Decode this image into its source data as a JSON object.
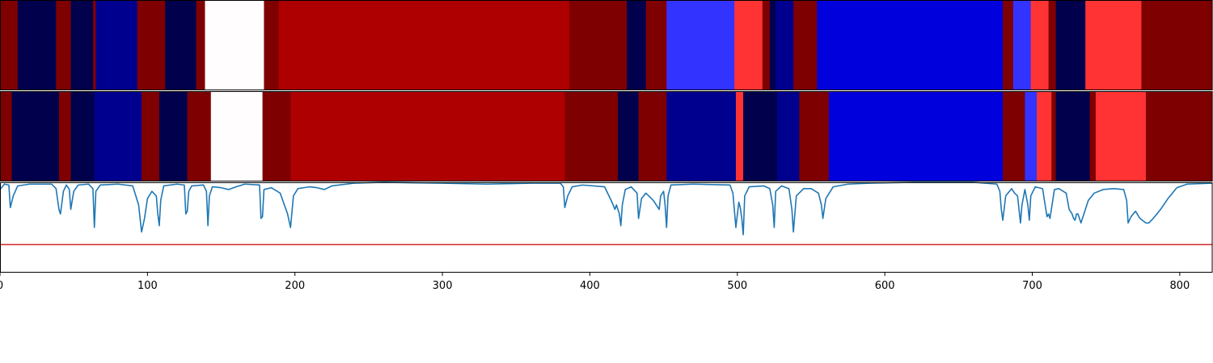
{
  "chart_data": {
    "type": "heatmap",
    "title": "",
    "xlabel": "",
    "ylabel": "",
    "xlim": [
      0,
      822
    ],
    "x_ticks": [
      "0",
      "100",
      "200",
      "300",
      "400",
      "500",
      "600",
      "700",
      "800"
    ],
    "x_tick_values": [
      0,
      100,
      200,
      300,
      400,
      500,
      600,
      700,
      800
    ],
    "grid": false,
    "tracks": [
      {
        "kind": "segments",
        "segments": [
          {
            "start": 0,
            "end": 12,
            "color": "#7f0000"
          },
          {
            "start": 12,
            "end": 38,
            "color": "#00004c"
          },
          {
            "start": 38,
            "end": 48,
            "color": "#7f0000"
          },
          {
            "start": 48,
            "end": 63,
            "color": "#00004c"
          },
          {
            "start": 63,
            "end": 65,
            "color": "#7f0000"
          },
          {
            "start": 65,
            "end": 93,
            "color": "#00008f"
          },
          {
            "start": 93,
            "end": 112,
            "color": "#7f0000"
          },
          {
            "start": 112,
            "end": 133,
            "color": "#00004c"
          },
          {
            "start": 133,
            "end": 139,
            "color": "#7f0000"
          },
          {
            "start": 139,
            "end": 179,
            "color": "#fffdfd"
          },
          {
            "start": 179,
            "end": 189,
            "color": "#7f0000"
          },
          {
            "start": 189,
            "end": 386,
            "color": "#ae0000"
          },
          {
            "start": 386,
            "end": 425,
            "color": "#7f0000"
          },
          {
            "start": 425,
            "end": 438,
            "color": "#00004c"
          },
          {
            "start": 438,
            "end": 452,
            "color": "#7f0000"
          },
          {
            "start": 452,
            "end": 498,
            "color": "#3333ff"
          },
          {
            "start": 498,
            "end": 517,
            "color": "#ff3333"
          },
          {
            "start": 517,
            "end": 522,
            "color": "#7f0000"
          },
          {
            "start": 522,
            "end": 526,
            "color": "#00004c"
          },
          {
            "start": 526,
            "end": 538,
            "color": "#00008f"
          },
          {
            "start": 538,
            "end": 554,
            "color": "#7f0000"
          },
          {
            "start": 554,
            "end": 680,
            "color": "#0000dd"
          },
          {
            "start": 680,
            "end": 687,
            "color": "#7f0000"
          },
          {
            "start": 687,
            "end": 699,
            "color": "#3333ff"
          },
          {
            "start": 699,
            "end": 711,
            "color": "#ff3333"
          },
          {
            "start": 711,
            "end": 716,
            "color": "#7f0000"
          },
          {
            "start": 716,
            "end": 736,
            "color": "#00004c"
          },
          {
            "start": 736,
            "end": 774,
            "color": "#ff3333"
          },
          {
            "start": 774,
            "end": 822,
            "color": "#7f0000"
          }
        ]
      },
      {
        "kind": "segments",
        "segments": [
          {
            "start": 0,
            "end": 8,
            "color": "#7f0000"
          },
          {
            "start": 8,
            "end": 40,
            "color": "#00004c"
          },
          {
            "start": 40,
            "end": 48,
            "color": "#7f0000"
          },
          {
            "start": 48,
            "end": 64,
            "color": "#00004c"
          },
          {
            "start": 64,
            "end": 96,
            "color": "#00008f"
          },
          {
            "start": 96,
            "end": 108,
            "color": "#7f0000"
          },
          {
            "start": 108,
            "end": 127,
            "color": "#00004c"
          },
          {
            "start": 127,
            "end": 143,
            "color": "#7f0000"
          },
          {
            "start": 143,
            "end": 178,
            "color": "#fffdfd"
          },
          {
            "start": 178,
            "end": 197,
            "color": "#7f0000"
          },
          {
            "start": 197,
            "end": 383,
            "color": "#ae0000"
          },
          {
            "start": 383,
            "end": 419,
            "color": "#7f0000"
          },
          {
            "start": 419,
            "end": 433,
            "color": "#00004c"
          },
          {
            "start": 433,
            "end": 452,
            "color": "#7f0000"
          },
          {
            "start": 452,
            "end": 499,
            "color": "#00008f"
          },
          {
            "start": 499,
            "end": 504,
            "color": "#ff3333"
          },
          {
            "start": 504,
            "end": 527,
            "color": "#00004c"
          },
          {
            "start": 527,
            "end": 542,
            "color": "#00008f"
          },
          {
            "start": 542,
            "end": 562,
            "color": "#7f0000"
          },
          {
            "start": 562,
            "end": 680,
            "color": "#0000dd"
          },
          {
            "start": 680,
            "end": 695,
            "color": "#7f0000"
          },
          {
            "start": 695,
            "end": 703,
            "color": "#3333ff"
          },
          {
            "start": 703,
            "end": 713,
            "color": "#ff3333"
          },
          {
            "start": 713,
            "end": 716,
            "color": "#7f0000"
          },
          {
            "start": 716,
            "end": 739,
            "color": "#00004c"
          },
          {
            "start": 739,
            "end": 743,
            "color": "#7f0000"
          },
          {
            "start": 743,
            "end": 777,
            "color": "#ff3333"
          },
          {
            "start": 777,
            "end": 822,
            "color": "#7f0000"
          }
        ]
      },
      {
        "kind": "line",
        "line_color": "#1f77b4",
        "threshold_color": "#d62728",
        "ylim": [
          0,
          1
        ],
        "threshold": 0.31,
        "points": [
          [
            0,
            0.92
          ],
          [
            3,
            0.98
          ],
          [
            6,
            0.97
          ],
          [
            7,
            0.72
          ],
          [
            9,
            0.85
          ],
          [
            12,
            0.96
          ],
          [
            20,
            0.98
          ],
          [
            35,
            0.98
          ],
          [
            38,
            0.93
          ],
          [
            40,
            0.7
          ],
          [
            41,
            0.65
          ],
          [
            43,
            0.9
          ],
          [
            45,
            0.97
          ],
          [
            47,
            0.92
          ],
          [
            48,
            0.7
          ],
          [
            50,
            0.9
          ],
          [
            53,
            0.97
          ],
          [
            60,
            0.98
          ],
          [
            63,
            0.93
          ],
          [
            64,
            0.5
          ],
          [
            65,
            0.9
          ],
          [
            68,
            0.97
          ],
          [
            80,
            0.98
          ],
          [
            90,
            0.96
          ],
          [
            94,
            0.75
          ],
          [
            96,
            0.45
          ],
          [
            98,
            0.6
          ],
          [
            100,
            0.82
          ],
          [
            103,
            0.9
          ],
          [
            106,
            0.85
          ],
          [
            107,
            0.65
          ],
          [
            108,
            0.52
          ],
          [
            109,
            0.8
          ],
          [
            111,
            0.96
          ],
          [
            120,
            0.98
          ],
          [
            125,
            0.97
          ],
          [
            126,
            0.65
          ],
          [
            127,
            0.68
          ],
          [
            128,
            0.9
          ],
          [
            130,
            0.96
          ],
          [
            138,
            0.97
          ],
          [
            140,
            0.9
          ],
          [
            141,
            0.52
          ],
          [
            142,
            0.85
          ],
          [
            144,
            0.95
          ],
          [
            150,
            0.94
          ],
          [
            155,
            0.92
          ],
          [
            160,
            0.95
          ],
          [
            166,
            0.98
          ],
          [
            176,
            0.97
          ],
          [
            177,
            0.6
          ],
          [
            178,
            0.62
          ],
          [
            179,
            0.92
          ],
          [
            184,
            0.94
          ],
          [
            190,
            0.88
          ],
          [
            195,
            0.65
          ],
          [
            197,
            0.5
          ],
          [
            199,
            0.85
          ],
          [
            202,
            0.93
          ],
          [
            210,
            0.95
          ],
          [
            215,
            0.94
          ],
          [
            220,
            0.92
          ],
          [
            225,
            0.96
          ],
          [
            240,
            0.99
          ],
          [
            260,
            1.0
          ],
          [
            300,
            0.99
          ],
          [
            330,
            0.98
          ],
          [
            360,
            0.99
          ],
          [
            380,
            0.99
          ],
          [
            382,
            0.95
          ],
          [
            383,
            0.72
          ],
          [
            385,
            0.85
          ],
          [
            388,
            0.95
          ],
          [
            395,
            0.97
          ],
          [
            410,
            0.95
          ],
          [
            415,
            0.78
          ],
          [
            417,
            0.7
          ],
          [
            418,
            0.75
          ],
          [
            420,
            0.65
          ],
          [
            421,
            0.52
          ],
          [
            422,
            0.75
          ],
          [
            424,
            0.92
          ],
          [
            428,
            0.95
          ],
          [
            432,
            0.88
          ],
          [
            433,
            0.6
          ],
          [
            435,
            0.82
          ],
          [
            438,
            0.88
          ],
          [
            443,
            0.8
          ],
          [
            447,
            0.7
          ],
          [
            448,
            0.85
          ],
          [
            450,
            0.9
          ],
          [
            451,
            0.75
          ],
          [
            452,
            0.5
          ],
          [
            453,
            0.85
          ],
          [
            455,
            0.97
          ],
          [
            470,
            0.98
          ],
          [
            495,
            0.97
          ],
          [
            497,
            0.88
          ],
          [
            499,
            0.5
          ],
          [
            501,
            0.78
          ],
          [
            502,
            0.72
          ],
          [
            503,
            0.6
          ],
          [
            504,
            0.42
          ],
          [
            505,
            0.85
          ],
          [
            508,
            0.95
          ],
          [
            518,
            0.96
          ],
          [
            522,
            0.93
          ],
          [
            524,
            0.75
          ],
          [
            525,
            0.5
          ],
          [
            526,
            0.9
          ],
          [
            530,
            0.96
          ],
          [
            535,
            0.93
          ],
          [
            537,
            0.7
          ],
          [
            538,
            0.45
          ],
          [
            540,
            0.85
          ],
          [
            545,
            0.93
          ],
          [
            550,
            0.93
          ],
          [
            555,
            0.88
          ],
          [
            557,
            0.75
          ],
          [
            558,
            0.6
          ],
          [
            560,
            0.82
          ],
          [
            565,
            0.95
          ],
          [
            575,
            0.98
          ],
          [
            590,
            0.99
          ],
          [
            620,
            1.0
          ],
          [
            660,
            1.0
          ],
          [
            676,
            0.98
          ],
          [
            678,
            0.9
          ],
          [
            679,
            0.7
          ],
          [
            680,
            0.58
          ],
          [
            682,
            0.85
          ],
          [
            686,
            0.93
          ],
          [
            688,
            0.88
          ],
          [
            690,
            0.85
          ],
          [
            692,
            0.55
          ],
          [
            693,
            0.75
          ],
          [
            695,
            0.92
          ],
          [
            697,
            0.75
          ],
          [
            698,
            0.58
          ],
          [
            699,
            0.85
          ],
          [
            702,
            0.95
          ],
          [
            707,
            0.93
          ],
          [
            709,
            0.72
          ],
          [
            710,
            0.62
          ],
          [
            711,
            0.65
          ],
          [
            712,
            0.6
          ],
          [
            715,
            0.92
          ],
          [
            718,
            0.93
          ],
          [
            723,
            0.88
          ],
          [
            725,
            0.7
          ],
          [
            727,
            0.65
          ],
          [
            728,
            0.6
          ],
          [
            729,
            0.58
          ],
          [
            730,
            0.65
          ],
          [
            731,
            0.65
          ],
          [
            733,
            0.55
          ],
          [
            735,
            0.65
          ],
          [
            738,
            0.8
          ],
          [
            742,
            0.88
          ],
          [
            748,
            0.92
          ],
          [
            755,
            0.93
          ],
          [
            762,
            0.92
          ],
          [
            764,
            0.8
          ],
          [
            765,
            0.55
          ],
          [
            767,
            0.62
          ],
          [
            770,
            0.68
          ],
          [
            773,
            0.6
          ],
          [
            777,
            0.55
          ],
          [
            779,
            0.55
          ],
          [
            782,
            0.6
          ],
          [
            787,
            0.7
          ],
          [
            792,
            0.82
          ],
          [
            798,
            0.94
          ],
          [
            805,
            0.98
          ],
          [
            822,
            0.99
          ]
        ]
      }
    ]
  }
}
